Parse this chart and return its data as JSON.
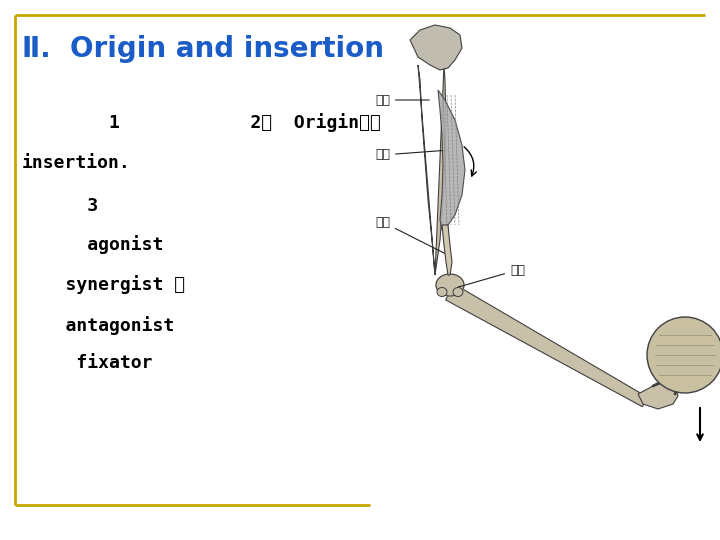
{
  "background_color": "#ffffff",
  "border_color": "#c8a800",
  "title_prefix": "Ⅱ.",
  "title_text": "  Origin and insertion",
  "title_color": "#1a5cc8",
  "title_fontsize": 20,
  "body_color": "#000000",
  "body_fontsize": 13,
  "body_font": "monospace",
  "lines": [
    [
      "        1            2、  Origin）、",
      0.79
    ],
    [
      "insertion.",
      0.715
    ],
    [
      "      3",
      0.635
    ],
    [
      "      agonist",
      0.565
    ],
    [
      "    synergist 、",
      0.49
    ],
    [
      "    antagonist",
      0.415
    ],
    [
      "     fixator",
      0.345
    ]
  ],
  "sketch_color_bone": "#c8c0a8",
  "sketch_color_muscle": "#a8a8a8",
  "sketch_color_tendon": "#d0c8b0",
  "sketch_line_color": "#404040",
  "label_color": "#202020"
}
